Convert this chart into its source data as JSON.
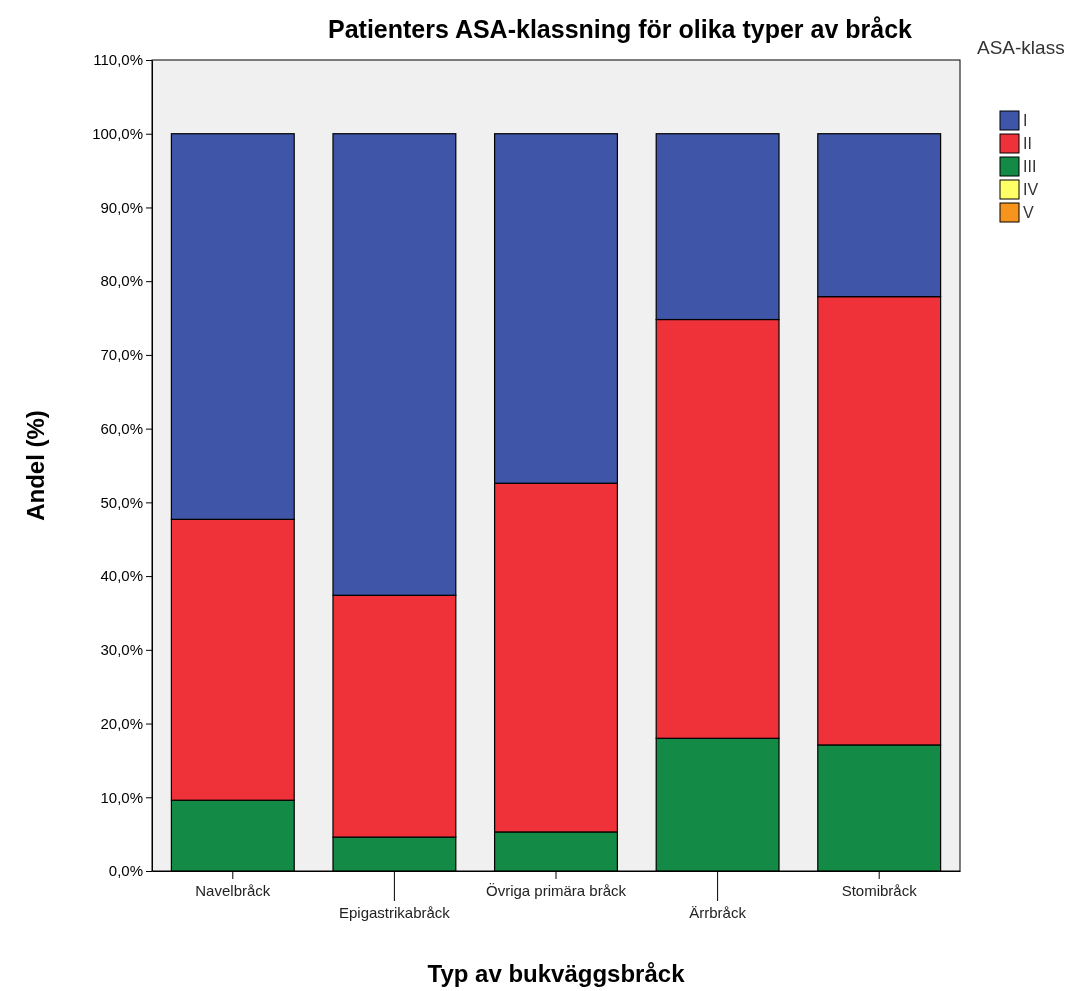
{
  "chart_data": {
    "type": "bar",
    "stacked": true,
    "title": "Patienters ASA-klassning för olika typer av bråck",
    "xlabel": "Typ av bukväggsbråck",
    "ylabel": "Andel (%)",
    "legend_title": "ASA-klass",
    "legend": "right",
    "categories": [
      "Navelbråck",
      "Epigastrikabråck",
      "Övriga primära bråck",
      "Ärrbråck",
      "Stomibråck"
    ],
    "series": [
      {
        "name": "III",
        "color": "#138a45",
        "values": [
          9.6,
          4.6,
          5.3,
          18.0,
          17.1
        ]
      },
      {
        "name": "II",
        "color": "#ef3239",
        "values": [
          38.1,
          32.8,
          47.3,
          56.8,
          60.8
        ]
      },
      {
        "name": "I",
        "color": "#3f56a8",
        "values": [
          52.3,
          62.6,
          47.4,
          25.2,
          22.1
        ]
      },
      {
        "name": "IV",
        "color": "#ffff66",
        "values": [
          0,
          0,
          0,
          0,
          0
        ]
      },
      {
        "name": "V",
        "color": "#f7941d",
        "values": [
          0,
          0,
          0,
          0,
          0
        ]
      }
    ],
    "ylim": [
      0,
      110
    ],
    "yticks": [
      {
        "value": 0,
        "label": "0,0%"
      },
      {
        "value": 10,
        "label": "10,0%"
      },
      {
        "value": 20,
        "label": "20,0%"
      },
      {
        "value": 30,
        "label": "30,0%"
      },
      {
        "value": 40,
        "label": "40,0%"
      },
      {
        "value": 50,
        "label": "50,0%"
      },
      {
        "value": 60,
        "label": "60,0%"
      },
      {
        "value": 70,
        "label": "70,0%"
      },
      {
        "value": 80,
        "label": "80,0%"
      },
      {
        "value": 90,
        "label": "90,0%"
      },
      {
        "value": 100,
        "label": "100,0%"
      },
      {
        "value": 110,
        "label": "110,0%"
      }
    ]
  }
}
